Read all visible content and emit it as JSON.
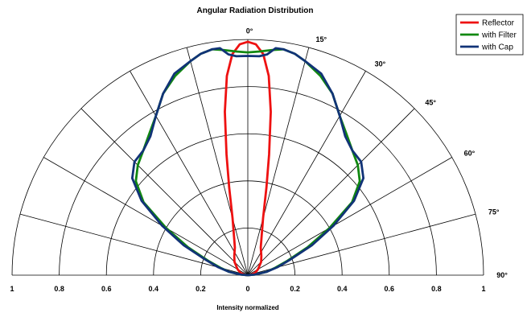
{
  "chart_data": {
    "type": "polar",
    "title": "Angular Radiation Distribution",
    "xlabel": "Intensity normalized",
    "angle_tick_labels": [
      {
        "angle": 0,
        "label": "0°"
      },
      {
        "angle": 15,
        "label": "15°"
      },
      {
        "angle": 30,
        "label": "30°"
      },
      {
        "angle": 45,
        "label": "45°"
      },
      {
        "angle": 60,
        "label": "60°"
      },
      {
        "angle": 75,
        "label": "75°"
      },
      {
        "angle": 90,
        "label": "90°"
      }
    ],
    "spoke_angles": [
      -90,
      -75,
      -60,
      -45,
      -30,
      -15,
      0,
      15,
      30,
      45,
      60,
      75,
      90
    ],
    "ring_radii": [
      0.2,
      0.4,
      0.6,
      0.8,
      1.0
    ],
    "radial_tick_labels": [
      {
        "value": -1.0,
        "label": "1"
      },
      {
        "value": -0.8,
        "label": "0.8"
      },
      {
        "value": -0.6,
        "label": "0.6"
      },
      {
        "value": -0.4,
        "label": "0.4"
      },
      {
        "value": -0.2,
        "label": "0.2"
      },
      {
        "value": 0.0,
        "label": "0"
      },
      {
        "value": 0.2,
        "label": "0.2"
      },
      {
        "value": 0.4,
        "label": "0.4"
      },
      {
        "value": 0.6,
        "label": "0.6"
      },
      {
        "value": 0.8,
        "label": "0.8"
      },
      {
        "value": 1.0,
        "label": "1"
      }
    ],
    "legend_position": "top-right",
    "series": [
      {
        "name": "Reflector",
        "color": "#ee1111",
        "points": [
          [
            -90,
            0
          ],
          [
            -85,
            0.01
          ],
          [
            -75,
            0.03
          ],
          [
            -60,
            0.05
          ],
          [
            -45,
            0.08
          ],
          [
            -35,
            0.1
          ],
          [
            -25,
            0.13
          ],
          [
            -20,
            0.17
          ],
          [
            -15,
            0.25
          ],
          [
            -12,
            0.38
          ],
          [
            -10,
            0.52
          ],
          [
            -8,
            0.7
          ],
          [
            -6,
            0.85
          ],
          [
            -4,
            0.94
          ],
          [
            -2,
            0.98
          ],
          [
            0,
            0.99
          ],
          [
            2,
            0.98
          ],
          [
            4,
            0.94
          ],
          [
            6,
            0.85
          ],
          [
            8,
            0.7
          ],
          [
            10,
            0.52
          ],
          [
            12,
            0.38
          ],
          [
            15,
            0.25
          ],
          [
            20,
            0.17
          ],
          [
            25,
            0.13
          ],
          [
            35,
            0.1
          ],
          [
            45,
            0.08
          ],
          [
            60,
            0.05
          ],
          [
            75,
            0.03
          ],
          [
            85,
            0.01
          ],
          [
            90,
            0
          ]
        ]
      },
      {
        "name": "with Filter",
        "color": "#118811",
        "points": [
          [
            -90,
            0
          ],
          [
            -85,
            0.03
          ],
          [
            -80,
            0.08
          ],
          [
            -75,
            0.12
          ],
          [
            -70,
            0.18
          ],
          [
            -65,
            0.28
          ],
          [
            -60,
            0.4
          ],
          [
            -55,
            0.54
          ],
          [
            -50,
            0.62
          ],
          [
            -45,
            0.66
          ],
          [
            -40,
            0.69
          ],
          [
            -35,
            0.73
          ],
          [
            -30,
            0.78
          ],
          [
            -25,
            0.85
          ],
          [
            -20,
            0.9
          ],
          [
            -15,
            0.94
          ],
          [
            -12,
            0.96
          ],
          [
            -9,
            0.97
          ],
          [
            -6,
            0.96
          ],
          [
            -3,
            0.95
          ],
          [
            0,
            0.945
          ],
          [
            3,
            0.95
          ],
          [
            6,
            0.96
          ],
          [
            9,
            0.97
          ],
          [
            12,
            0.96
          ],
          [
            15,
            0.94
          ],
          [
            20,
            0.9
          ],
          [
            25,
            0.85
          ],
          [
            30,
            0.78
          ],
          [
            35,
            0.73
          ],
          [
            40,
            0.69
          ],
          [
            45,
            0.66
          ],
          [
            50,
            0.62
          ],
          [
            55,
            0.54
          ],
          [
            60,
            0.4
          ],
          [
            65,
            0.28
          ],
          [
            70,
            0.18
          ],
          [
            75,
            0.12
          ],
          [
            80,
            0.08
          ],
          [
            85,
            0.03
          ],
          [
            90,
            0
          ]
        ]
      },
      {
        "name": "with Cap",
        "color": "#113377",
        "points": [
          [
            -90,
            0
          ],
          [
            -85,
            0.03
          ],
          [
            -80,
            0.08
          ],
          [
            -75,
            0.13
          ],
          [
            -70,
            0.19
          ],
          [
            -65,
            0.3
          ],
          [
            -60,
            0.42
          ],
          [
            -55,
            0.55
          ],
          [
            -50,
            0.64
          ],
          [
            -45,
            0.68
          ],
          [
            -40,
            0.69
          ],
          [
            -35,
            0.72
          ],
          [
            -30,
            0.78
          ],
          [
            -25,
            0.85
          ],
          [
            -20,
            0.91
          ],
          [
            -15,
            0.94
          ],
          [
            -12,
            0.96
          ],
          [
            -9,
            0.97
          ],
          [
            -7,
            0.97
          ],
          [
            -5,
            0.94
          ],
          [
            -3,
            0.93
          ],
          [
            0,
            0.93
          ],
          [
            3,
            0.93
          ],
          [
            5,
            0.94
          ],
          [
            7,
            0.97
          ],
          [
            9,
            0.97
          ],
          [
            12,
            0.96
          ],
          [
            15,
            0.94
          ],
          [
            20,
            0.91
          ],
          [
            25,
            0.85
          ],
          [
            30,
            0.78
          ],
          [
            35,
            0.72
          ],
          [
            40,
            0.69
          ],
          [
            45,
            0.68
          ],
          [
            50,
            0.64
          ],
          [
            55,
            0.55
          ],
          [
            60,
            0.42
          ],
          [
            65,
            0.3
          ],
          [
            70,
            0.19
          ],
          [
            75,
            0.13
          ],
          [
            80,
            0.08
          ],
          [
            85,
            0.03
          ],
          [
            90,
            0
          ]
        ]
      }
    ]
  }
}
